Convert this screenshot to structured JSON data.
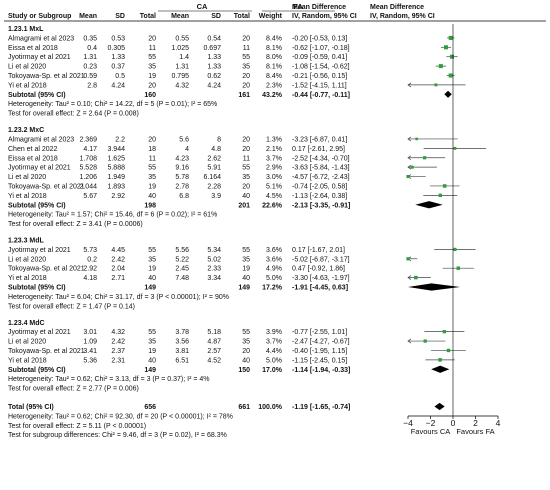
{
  "header": {
    "group_ca": "CA",
    "group_fa": "FA",
    "md_title": "Mean Difference",
    "md_sub": "IV, Random, 95% CI",
    "cols": [
      "Study or Subgroup",
      "Mean",
      "SD",
      "Total",
      "Mean",
      "SD",
      "Total",
      "Weight"
    ]
  },
  "subgroups": [
    {
      "title": "1.23.1 MxL",
      "rows": [
        [
          "Almagrami et al 2023",
          "0.35",
          "0.53",
          "20",
          "0.55",
          "0.54",
          "20",
          "8.4%",
          "-0.20 [-0.53, 0.13]"
        ],
        [
          "Eissa et al 2018",
          "0.4",
          "0.305",
          "11",
          "1.025",
          "0.697",
          "11",
          "8.1%",
          "-0.62 [-1.07, -0.18]"
        ],
        [
          "Jyotirmay et al 2021",
          "1.31",
          "1.33",
          "55",
          "1.4",
          "1.33",
          "55",
          "8.0%",
          "-0.09 [-0.59, 0.41]"
        ],
        [
          "Li et al 2020",
          "0.23",
          "0.37",
          "35",
          "1.31",
          "1.33",
          "35",
          "8.1%",
          "-1.08 [-1.54, -0.62]"
        ],
        [
          "Tokoyawa-Sp. et al 2021",
          "0.59",
          "0.5",
          "19",
          "0.795",
          "0.62",
          "20",
          "8.4%",
          "-0.21 [-0.56, 0.15]"
        ],
        [
          "Yi et al 2018",
          "2.8",
          "4.24",
          "20",
          "4.32",
          "4.24",
          "20",
          "2.3%",
          "-1.52 [-4.15, 1.11]"
        ]
      ],
      "subtotal": [
        "Subtotal (95% CI)",
        "160",
        "161",
        "43.2%",
        "-0.44 [-0.77, -0.11]"
      ],
      "het": "Heterogeneity: Tau² = 0.10; Chi² = 14.22, df = 5 (P = 0.01); I² = 65%",
      "test": "Test for overall effect: Z = 2.64 (P = 0.008)"
    },
    {
      "title": "1.23.2 MxC",
      "rows": [
        [
          "Almagrami et al 2023",
          "2.369",
          "2.2",
          "20",
          "5.6",
          "8",
          "20",
          "1.3%",
          "-3.23 [-6.87, 0.41]"
        ],
        [
          "Chen et al 2022",
          "4.17",
          "3.944",
          "18",
          "4",
          "4.8",
          "20",
          "2.1%",
          "0.17 [-2.61, 2.95]"
        ],
        [
          "Eissa et al 2018",
          "1.708",
          "1.625",
          "11",
          "4.23",
          "2.62",
          "11",
          "3.7%",
          "-2.52 [-4.34, -0.70]"
        ],
        [
          "Jyotirmay et al 2021",
          "5.528",
          "5.888",
          "55",
          "9.16",
          "5.91",
          "55",
          "2.9%",
          "-3.63 [-5.84, -1.43]"
        ],
        [
          "Li et al 2020",
          "1.206",
          "1.949",
          "35",
          "5.78",
          "6.164",
          "35",
          "3.0%",
          "-4.57 [-6.72, -2.43]"
        ],
        [
          "Tokoyawa-Sp. et al 2021",
          "2.044",
          "1.893",
          "19",
          "2.78",
          "2.28",
          "20",
          "5.1%",
          "-0.74 [-2.05, 0.58]"
        ],
        [
          "Yi et al 2018",
          "5.67",
          "2.92",
          "40",
          "6.8",
          "3.9",
          "40",
          "4.5%",
          "-1.13 [-2.64, 0.38]"
        ]
      ],
      "subtotal": [
        "Subtotal (95% CI)",
        "198",
        "201",
        "22.6%",
        "-2.13 [-3.35, -0.91]"
      ],
      "het": "Heterogeneity: Tau² = 1.57; Chi² = 15.46, df = 6 (P = 0.02); I² = 61%",
      "test": "Test for overall effect: Z = 3.41 (P = 0.0006)"
    },
    {
      "title": "1.23.3 MdL",
      "rows": [
        [
          "Jyotirmay et al 2021",
          "5.73",
          "4.45",
          "55",
          "5.56",
          "5.34",
          "55",
          "3.6%",
          "0.17 [-1.67, 2.01]"
        ],
        [
          "Li et al 2020",
          "0.2",
          "2.42",
          "35",
          "5.22",
          "5.02",
          "35",
          "3.6%",
          "-5.02 [-6.87, -3.17]"
        ],
        [
          "Tokoyawa-Sp. et al 2021",
          "2.92",
          "2.04",
          "19",
          "2.45",
          "2.33",
          "19",
          "4.9%",
          "0.47 [-0.92, 1.86]"
        ],
        [
          "Yi et al 2018",
          "4.18",
          "2.71",
          "40",
          "7.48",
          "3.34",
          "40",
          "5.0%",
          "-3.30 [-4.63, -1.97]"
        ]
      ],
      "subtotal": [
        "Subtotal (95% CI)",
        "149",
        "149",
        "17.2%",
        "-1.91 [-4.45, 0.63]"
      ],
      "het": "Heterogeneity: Tau² = 6.04; Chi² = 31.17, df = 3 (P < 0.00001); I² = 90%",
      "test": "Test for overall effect: Z = 1.47 (P = 0.14)"
    },
    {
      "title": "1.23.4 MdC",
      "rows": [
        [
          "Jyotirmay et al 2021",
          "3.01",
          "4.32",
          "55",
          "3.78",
          "5.18",
          "55",
          "3.9%",
          "-0.77 [-2.55, 1.01]"
        ],
        [
          "Li et al 2020",
          "1.09",
          "2.42",
          "35",
          "3.56",
          "4.87",
          "35",
          "3.7%",
          "-2.47 [-4.27, -0.67]"
        ],
        [
          "Tokoyawa-Sp. et al 2021",
          "3.41",
          "2.37",
          "19",
          "3.81",
          "2.57",
          "20",
          "4.4%",
          "-0.40 [-1.95, 1.15]"
        ],
        [
          "Yi et al 2018",
          "5.36",
          "2.31",
          "40",
          "6.51",
          "4.52",
          "40",
          "5.0%",
          "-1.15 [-2.45, 0.15]"
        ]
      ],
      "subtotal": [
        "Subtotal (95% CI)",
        "149",
        "150",
        "17.0%",
        "-1.14 [-1.94, -0.33]"
      ],
      "het": "Heterogeneity: Tau² = 0.62; Chi² = 3.13, df = 3 (P = 0.37); I² = 4%",
      "test": "Test for overall effect: Z = 2.77 (P = 0.006)"
    }
  ],
  "total": [
    "Total (95% CI)",
    "656",
    "661",
    "100.0%",
    "-1.19 [-1.65, -0.74]"
  ],
  "footer": [
    "Heterogeneity: Tau² = 0.62; Chi² = 92.30, df = 20 (P < 0.00001); I² = 78%",
    "Test for overall effect: Z = 5.11 (P < 0.00001)",
    "Test for subgroup differences: Chi² = 9.46, df = 3 (P = 0.02), I² = 68.3%"
  ],
  "axis_labels": {
    "favours_left": "Favours CA",
    "favours_right": "Favours FA"
  },
  "colors": {
    "study_marker": "#2e9e3e",
    "diamond": "#000000",
    "text": "#111111"
  },
  "chart_data": {
    "type": "forest",
    "effect_measure": "Mean Difference (IV, Random, 95% CI)",
    "xlim": [
      -4,
      4
    ],
    "ticks": [
      -4,
      -2,
      0,
      2,
      4
    ],
    "studies": [
      {
        "subgroup": "1.23.1 MxL",
        "study": "Almagrami et al 2023",
        "md": -0.2,
        "lo": -0.53,
        "hi": 0.13,
        "weight": 8.4
      },
      {
        "subgroup": "1.23.1 MxL",
        "study": "Eissa et al 2018",
        "md": -0.62,
        "lo": -1.07,
        "hi": -0.18,
        "weight": 8.1
      },
      {
        "subgroup": "1.23.1 MxL",
        "study": "Jyotirmay et al 2021",
        "md": -0.09,
        "lo": -0.59,
        "hi": 0.41,
        "weight": 8.0
      },
      {
        "subgroup": "1.23.1 MxL",
        "study": "Li et al 2020",
        "md": -1.08,
        "lo": -1.54,
        "hi": -0.62,
        "weight": 8.1
      },
      {
        "subgroup": "1.23.1 MxL",
        "study": "Tokoyawa-Sp. et al 2021",
        "md": -0.21,
        "lo": -0.56,
        "hi": 0.15,
        "weight": 8.4
      },
      {
        "subgroup": "1.23.1 MxL",
        "study": "Yi et al 2018",
        "md": -1.52,
        "lo": -4.15,
        "hi": 1.11,
        "weight": 2.3
      },
      {
        "subgroup": "1.23.2 MxC",
        "study": "Almagrami et al 2023",
        "md": -3.23,
        "lo": -6.87,
        "hi": 0.41,
        "weight": 1.3
      },
      {
        "subgroup": "1.23.2 MxC",
        "study": "Chen et al 2022",
        "md": 0.17,
        "lo": -2.61,
        "hi": 2.95,
        "weight": 2.1
      },
      {
        "subgroup": "1.23.2 MxC",
        "study": "Eissa et al 2018",
        "md": -2.52,
        "lo": -4.34,
        "hi": -0.7,
        "weight": 3.7
      },
      {
        "subgroup": "1.23.2 MxC",
        "study": "Jyotirmay et al 2021",
        "md": -3.63,
        "lo": -5.84,
        "hi": -1.43,
        "weight": 2.9
      },
      {
        "subgroup": "1.23.2 MxC",
        "study": "Li et al 2020",
        "md": -4.57,
        "lo": -6.72,
        "hi": -2.43,
        "weight": 3.0
      },
      {
        "subgroup": "1.23.2 MxC",
        "study": "Tokoyawa-Sp. et al 2021",
        "md": -0.74,
        "lo": -2.05,
        "hi": 0.58,
        "weight": 5.1
      },
      {
        "subgroup": "1.23.2 MxC",
        "study": "Yi et al 2018",
        "md": -1.13,
        "lo": -2.64,
        "hi": 0.38,
        "weight": 4.5
      },
      {
        "subgroup": "1.23.3 MdL",
        "study": "Jyotirmay et al 2021",
        "md": 0.17,
        "lo": -1.67,
        "hi": 2.01,
        "weight": 3.6
      },
      {
        "subgroup": "1.23.3 MdL",
        "study": "Li et al 2020",
        "md": -5.02,
        "lo": -6.87,
        "hi": -3.17,
        "weight": 3.6
      },
      {
        "subgroup": "1.23.3 MdL",
        "study": "Tokoyawa-Sp. et al 2021",
        "md": 0.47,
        "lo": -0.92,
        "hi": 1.86,
        "weight": 4.9
      },
      {
        "subgroup": "1.23.3 MdL",
        "study": "Yi et al 2018",
        "md": -3.3,
        "lo": -4.63,
        "hi": -1.97,
        "weight": 5.0
      },
      {
        "subgroup": "1.23.4 MdC",
        "study": "Jyotirmay et al 2021",
        "md": -0.77,
        "lo": -2.55,
        "hi": 1.01,
        "weight": 3.9
      },
      {
        "subgroup": "1.23.4 MdC",
        "study": "Li et al 2020",
        "md": -2.47,
        "lo": -4.27,
        "hi": -0.67,
        "weight": 3.7
      },
      {
        "subgroup": "1.23.4 MdC",
        "study": "Tokoyawa-Sp. et al 2021",
        "md": -0.4,
        "lo": -1.95,
        "hi": 1.15,
        "weight": 4.4
      },
      {
        "subgroup": "1.23.4 MdC",
        "study": "Yi et al 2018",
        "md": -1.15,
        "lo": -2.45,
        "hi": 0.15,
        "weight": 5.0
      }
    ],
    "subtotals": [
      {
        "subgroup": "1.23.1 MxL",
        "md": -0.44,
        "lo": -0.77,
        "hi": -0.11,
        "weight": 43.2
      },
      {
        "subgroup": "1.23.2 MxC",
        "md": -2.13,
        "lo": -3.35,
        "hi": -0.91,
        "weight": 22.6
      },
      {
        "subgroup": "1.23.3 MdL",
        "md": -1.91,
        "lo": -4.45,
        "hi": 0.63,
        "weight": 17.2
      },
      {
        "subgroup": "1.23.4 MdC",
        "md": -1.14,
        "lo": -1.94,
        "hi": -0.33,
        "weight": 17.0
      }
    ],
    "overall": {
      "md": -1.19,
      "lo": -1.65,
      "hi": -0.74,
      "weight": 100.0
    }
  }
}
